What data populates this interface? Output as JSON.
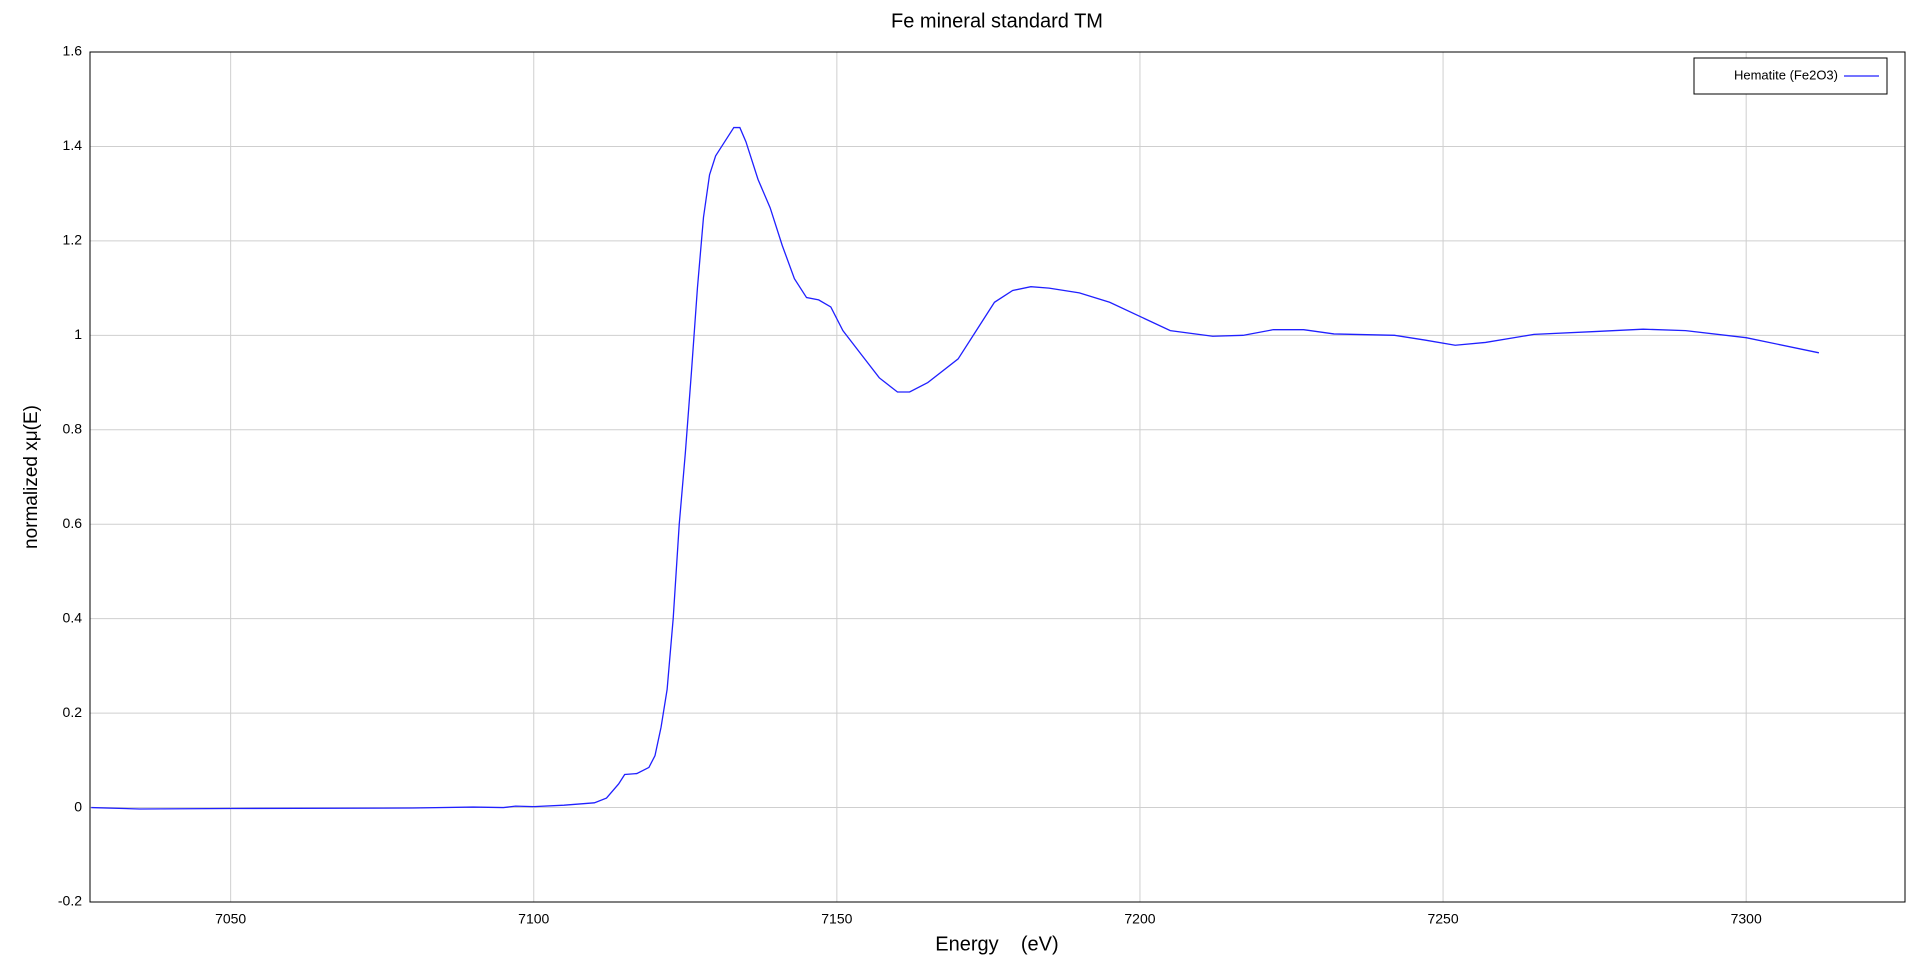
{
  "chart_data": {
    "type": "line",
    "title": "Fe mineral standard TM",
    "x_label": "Energy    (eV)",
    "y_label": "normalized xμ(E)",
    "xlim": [
      7026.8,
      7326.2
    ],
    "xticks": [
      7050,
      7100,
      7150,
      7200,
      7250,
      7300
    ],
    "ylim": [
      -0.2,
      1.6
    ],
    "yticks": [
      -0.2,
      0,
      0.2,
      0.4,
      0.6,
      0.8,
      1,
      1.2,
      1.4,
      1.6
    ],
    "grid": true,
    "legend": "upper right",
    "series": [
      {
        "name": "Hematite (Fe2O3)",
        "color": "#2020ff",
        "x": [
          7027,
          7035,
          7050,
          7080,
          7090,
          7095,
          7097,
          7100,
          7105,
          7110,
          7112,
          7114,
          7115,
          7117,
          7119,
          7120,
          7121,
          7122,
          7123,
          7124,
          7125,
          7126,
          7127,
          7128,
          7129,
          7130,
          7131,
          7133,
          7134,
          7135,
          7137,
          7139,
          7141,
          7143,
          7145,
          7147,
          7149,
          7151,
          7154,
          7157,
          7160,
          7162,
          7165,
          7170,
          7173,
          7176,
          7179,
          7182,
          7185,
          7190,
          7195,
          7200,
          7205,
          7212,
          7217,
          7222,
          7227,
          7232,
          7242,
          7247,
          7252,
          7257,
          7265,
          7275,
          7283,
          7290,
          7300,
          7312
        ],
        "values": [
          0,
          -0.003,
          -0.002,
          -0.001,
          0.001,
          0,
          0.003,
          0.002,
          0.005,
          0.01,
          0.02,
          0.05,
          0.07,
          0.072,
          0.085,
          0.11,
          0.17,
          0.25,
          0.4,
          0.6,
          0.75,
          0.92,
          1.1,
          1.25,
          1.34,
          1.38,
          1.4,
          1.44,
          1.44,
          1.41,
          1.33,
          1.27,
          1.19,
          1.12,
          1.08,
          1.075,
          1.06,
          1.01,
          0.96,
          0.91,
          0.88,
          0.88,
          0.9,
          0.95,
          1.01,
          1.07,
          1.095,
          1.103,
          1.1,
          1.09,
          1.07,
          1.04,
          1.01,
          0.998,
          1.0,
          1.012,
          1.012,
          1.003,
          1.0,
          0.99,
          0.979,
          0.985,
          1.002,
          1.008,
          1.013,
          1.01,
          0.995,
          0.963
        ]
      }
    ]
  }
}
